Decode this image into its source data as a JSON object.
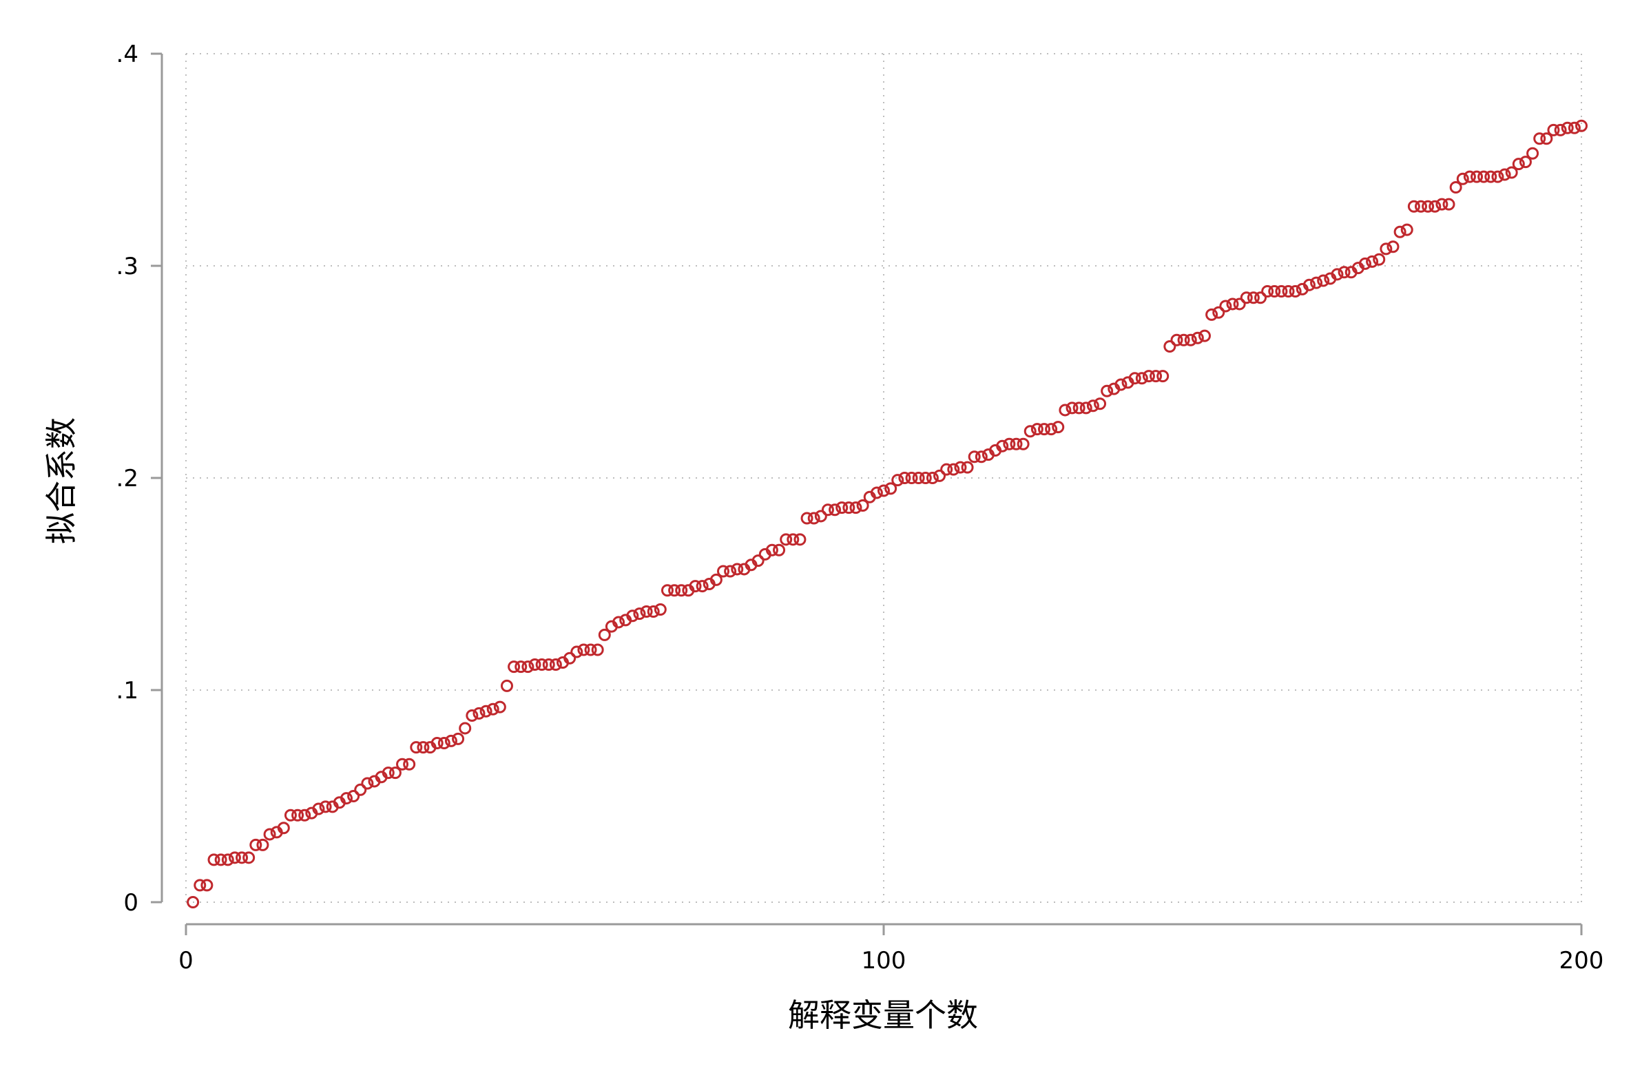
{
  "chart_data": {
    "type": "scatter",
    "title": "",
    "xlabel": "解释变量个数",
    "ylabel": "拟合系数",
    "xlim": [
      0,
      200
    ],
    "ylim": [
      0,
      0.4
    ],
    "x_ticks": [
      {
        "value": 0,
        "label": "0"
      },
      {
        "value": 100,
        "label": "100"
      },
      {
        "value": 200,
        "label": "200"
      }
    ],
    "y_ticks": [
      {
        "value": 0,
        "label": "0"
      },
      {
        "value": 0.1,
        "label": ".1"
      },
      {
        "value": 0.2,
        "label": ".2"
      },
      {
        "value": 0.3,
        "label": ".3"
      },
      {
        "value": 0.4,
        "label": ".4"
      }
    ],
    "grid": true,
    "marker": "hollow-circle",
    "marker_color": "#c0282d",
    "x": [
      1,
      2,
      3,
      4,
      5,
      6,
      7,
      8,
      9,
      10,
      11,
      12,
      13,
      14,
      15,
      16,
      17,
      18,
      19,
      20,
      21,
      22,
      23,
      24,
      25,
      26,
      27,
      28,
      29,
      30,
      31,
      32,
      33,
      34,
      35,
      36,
      37,
      38,
      39,
      40,
      41,
      42,
      43,
      44,
      45,
      46,
      47,
      48,
      49,
      50,
      51,
      52,
      53,
      54,
      55,
      56,
      57,
      58,
      59,
      60,
      61,
      62,
      63,
      64,
      65,
      66,
      67,
      68,
      69,
      70,
      71,
      72,
      73,
      74,
      75,
      76,
      77,
      78,
      79,
      80,
      81,
      82,
      83,
      84,
      85,
      86,
      87,
      88,
      89,
      90,
      91,
      92,
      93,
      94,
      95,
      96,
      97,
      98,
      99,
      100,
      101,
      102,
      103,
      104,
      105,
      106,
      107,
      108,
      109,
      110,
      111,
      112,
      113,
      114,
      115,
      116,
      117,
      118,
      119,
      120,
      121,
      122,
      123,
      124,
      125,
      126,
      127,
      128,
      129,
      130,
      131,
      132,
      133,
      134,
      135,
      136,
      137,
      138,
      139,
      140,
      141,
      142,
      143,
      144,
      145,
      146,
      147,
      148,
      149,
      150,
      151,
      152,
      153,
      154,
      155,
      156,
      157,
      158,
      159,
      160,
      161,
      162,
      163,
      164,
      165,
      166,
      167,
      168,
      169,
      170,
      171,
      172,
      173,
      174,
      175,
      176,
      177,
      178,
      179,
      180,
      181,
      182,
      183,
      184,
      185,
      186,
      187,
      188,
      189,
      190,
      191,
      192,
      193,
      194,
      195,
      196,
      197,
      198,
      199,
      200
    ],
    "y": [
      0.0,
      0.008,
      0.008,
      0.02,
      0.02,
      0.02,
      0.021,
      0.021,
      0.021,
      0.027,
      0.027,
      0.032,
      0.033,
      0.035,
      0.041,
      0.041,
      0.041,
      0.042,
      0.044,
      0.045,
      0.045,
      0.047,
      0.049,
      0.05,
      0.053,
      0.056,
      0.057,
      0.059,
      0.061,
      0.061,
      0.065,
      0.065,
      0.073,
      0.073,
      0.073,
      0.075,
      0.075,
      0.076,
      0.077,
      0.082,
      0.088,
      0.089,
      0.09,
      0.091,
      0.092,
      0.102,
      0.111,
      0.111,
      0.111,
      0.112,
      0.112,
      0.112,
      0.112,
      0.113,
      0.115,
      0.118,
      0.119,
      0.119,
      0.119,
      0.126,
      0.13,
      0.132,
      0.133,
      0.135,
      0.136,
      0.137,
      0.137,
      0.138,
      0.147,
      0.147,
      0.147,
      0.147,
      0.149,
      0.149,
      0.15,
      0.152,
      0.156,
      0.156,
      0.157,
      0.157,
      0.159,
      0.161,
      0.164,
      0.166,
      0.166,
      0.171,
      0.171,
      0.171,
      0.181,
      0.181,
      0.182,
      0.185,
      0.185,
      0.186,
      0.186,
      0.186,
      0.187,
      0.191,
      0.193,
      0.194,
      0.195,
      0.199,
      0.2,
      0.2,
      0.2,
      0.2,
      0.2,
      0.201,
      0.204,
      0.204,
      0.205,
      0.205,
      0.21,
      0.21,
      0.211,
      0.213,
      0.215,
      0.216,
      0.216,
      0.216,
      0.222,
      0.223,
      0.223,
      0.223,
      0.224,
      0.232,
      0.233,
      0.233,
      0.233,
      0.234,
      0.235,
      0.241,
      0.242,
      0.244,
      0.245,
      0.247,
      0.247,
      0.248,
      0.248,
      0.248,
      0.262,
      0.265,
      0.265,
      0.265,
      0.266,
      0.267,
      0.277,
      0.278,
      0.281,
      0.282,
      0.282,
      0.285,
      0.285,
      0.285,
      0.288,
      0.288,
      0.288,
      0.288,
      0.288,
      0.289,
      0.291,
      0.292,
      0.293,
      0.294,
      0.296,
      0.297,
      0.297,
      0.299,
      0.301,
      0.302,
      0.303,
      0.308,
      0.309,
      0.316,
      0.317,
      0.328,
      0.328,
      0.328,
      0.328,
      0.329,
      0.329,
      0.337,
      0.341,
      0.342,
      0.342,
      0.342,
      0.342,
      0.342,
      0.343,
      0.344,
      0.348,
      0.349,
      0.353,
      0.36,
      0.36,
      0.364,
      0.364,
      0.365,
      0.365,
      0.366
    ]
  }
}
